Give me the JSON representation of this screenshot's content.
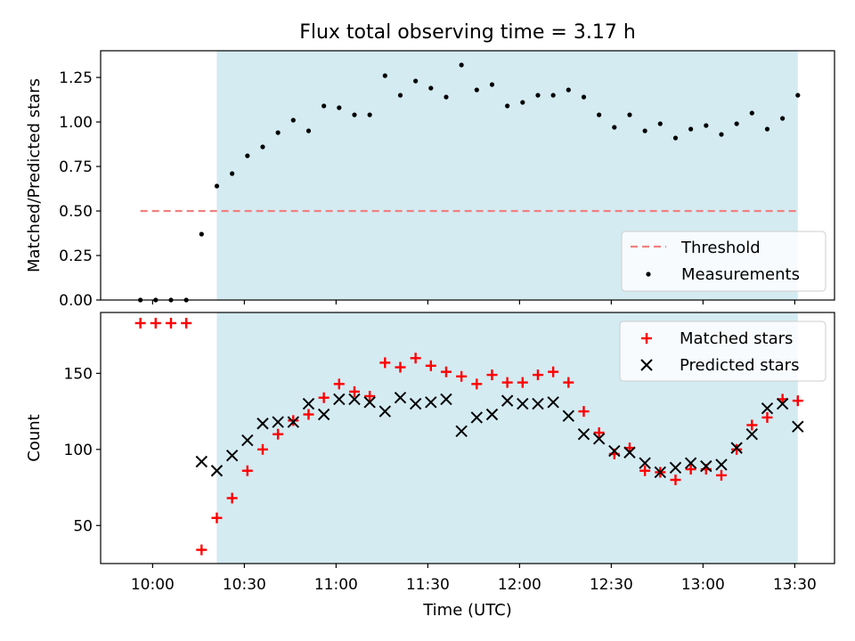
{
  "figure": {
    "title": "Flux total observing time = 3.17 h"
  },
  "x_axis": {
    "label": "Time (UTC)",
    "range_min": "09:43",
    "range_max": "13:43",
    "ticks": [
      "10:00",
      "10:30",
      "11:00",
      "11:30",
      "12:00",
      "12:30",
      "13:00",
      "13:30"
    ]
  },
  "shaded_region": {
    "start": "10:21",
    "end": "13:31",
    "color": "#add8e6"
  },
  "colors": {
    "threshold": "#f08080",
    "measurement": "#000000",
    "matched": "#ff0000",
    "predicted": "#000000"
  },
  "chart_data": [
    {
      "type": "scatter",
      "ylabel": "Matched/Predicted stars",
      "ylim": [
        0,
        1.4
      ],
      "yticks": [
        "0.00",
        "0.25",
        "0.50",
        "0.75",
        "1.00",
        "1.25"
      ],
      "legend_position": "lower-right",
      "threshold": {
        "name": "Threshold",
        "y": 0.5,
        "x_start": "09:56",
        "x_end": "13:31"
      },
      "series": [
        {
          "name": "Measurements",
          "x": [
            "09:56",
            "09:61",
            "10:06",
            "10:11",
            "10:16",
            "10:21",
            "10:26",
            "10:31",
            "10:36",
            "10:41",
            "10:46",
            "10:51",
            "10:56",
            "11:01",
            "11:06",
            "11:11",
            "11:16",
            "11:21",
            "11:26",
            "11:31",
            "11:36",
            "11:41",
            "11:46",
            "11:51",
            "11:56",
            "12:01",
            "12:06",
            "12:11",
            "12:16",
            "12:21",
            "12:26",
            "12:31",
            "12:36",
            "12:41",
            "12:46",
            "12:51",
            "12:56",
            "13:01",
            "13:06",
            "13:11",
            "13:16",
            "13:21",
            "13:26",
            "13:31"
          ],
          "y": [
            0.0,
            0.0,
            0.0,
            0.0,
            0.37,
            0.64,
            0.71,
            0.81,
            0.86,
            0.94,
            1.01,
            0.95,
            1.09,
            1.08,
            1.04,
            1.04,
            1.26,
            1.15,
            1.23,
            1.19,
            1.14,
            1.32,
            1.18,
            1.21,
            1.09,
            1.11,
            1.15,
            1.15,
            1.18,
            1.14,
            1.04,
            0.97,
            1.04,
            0.95,
            0.99,
            0.91,
            0.96,
            0.98,
            0.93,
            0.99,
            1.05,
            0.96,
            1.02,
            1.15
          ]
        }
      ]
    },
    {
      "type": "scatter",
      "ylabel": "Count",
      "ylim": [
        25,
        190
      ],
      "yticks": [
        "50",
        "100",
        "150"
      ],
      "legend_position": "upper-right",
      "series": [
        {
          "name": "Matched stars",
          "x": [
            "09:56",
            "10:01",
            "10:06",
            "10:11",
            "10:16",
            "10:21",
            "10:26",
            "10:31",
            "10:36",
            "10:41",
            "10:46",
            "10:51",
            "10:56",
            "11:01",
            "11:06",
            "11:11",
            "11:16",
            "11:21",
            "11:26",
            "11:31",
            "11:36",
            "11:41",
            "11:46",
            "11:51",
            "11:56",
            "12:01",
            "12:06",
            "12:11",
            "12:16",
            "12:21",
            "12:26",
            "12:31",
            "12:36",
            "12:41",
            "12:46",
            "12:51",
            "12:56",
            "13:01",
            "13:06",
            "13:11",
            "13:16",
            "13:21",
            "13:26",
            "13:31"
          ],
          "y": [
            183,
            183,
            183,
            183,
            34,
            55,
            68,
            86,
            100,
            110,
            119,
            123,
            134,
            143,
            138,
            135,
            157,
            154,
            160,
            155,
            151,
            148,
            143,
            149,
            144,
            144,
            149,
            151,
            144,
            125,
            111,
            97,
            101,
            86,
            85,
            80,
            87,
            87,
            83,
            100,
            116,
            121,
            133,
            132
          ]
        },
        {
          "name": "Predicted stars",
          "x": [
            "10:16",
            "10:21",
            "10:26",
            "10:31",
            "10:36",
            "10:41",
            "10:46",
            "10:51",
            "10:56",
            "11:01",
            "11:06",
            "11:11",
            "11:16",
            "11:21",
            "11:26",
            "11:31",
            "11:36",
            "11:41",
            "11:46",
            "11:51",
            "11:56",
            "12:01",
            "12:06",
            "12:11",
            "12:16",
            "12:21",
            "12:26",
            "12:31",
            "12:36",
            "12:41",
            "12:46",
            "12:51",
            "12:56",
            "13:01",
            "13:06",
            "13:11",
            "13:16",
            "13:21",
            "13:26",
            "13:31"
          ],
          "y": [
            92,
            86,
            96,
            106,
            117,
            118,
            118,
            130,
            123,
            133,
            133,
            131,
            125,
            134,
            130,
            131,
            133,
            112,
            121,
            123,
            132,
            130,
            130,
            131,
            122,
            110,
            107,
            99,
            98,
            91,
            85,
            88,
            91,
            89,
            90,
            101,
            110,
            127,
            130,
            115
          ]
        }
      ]
    }
  ]
}
